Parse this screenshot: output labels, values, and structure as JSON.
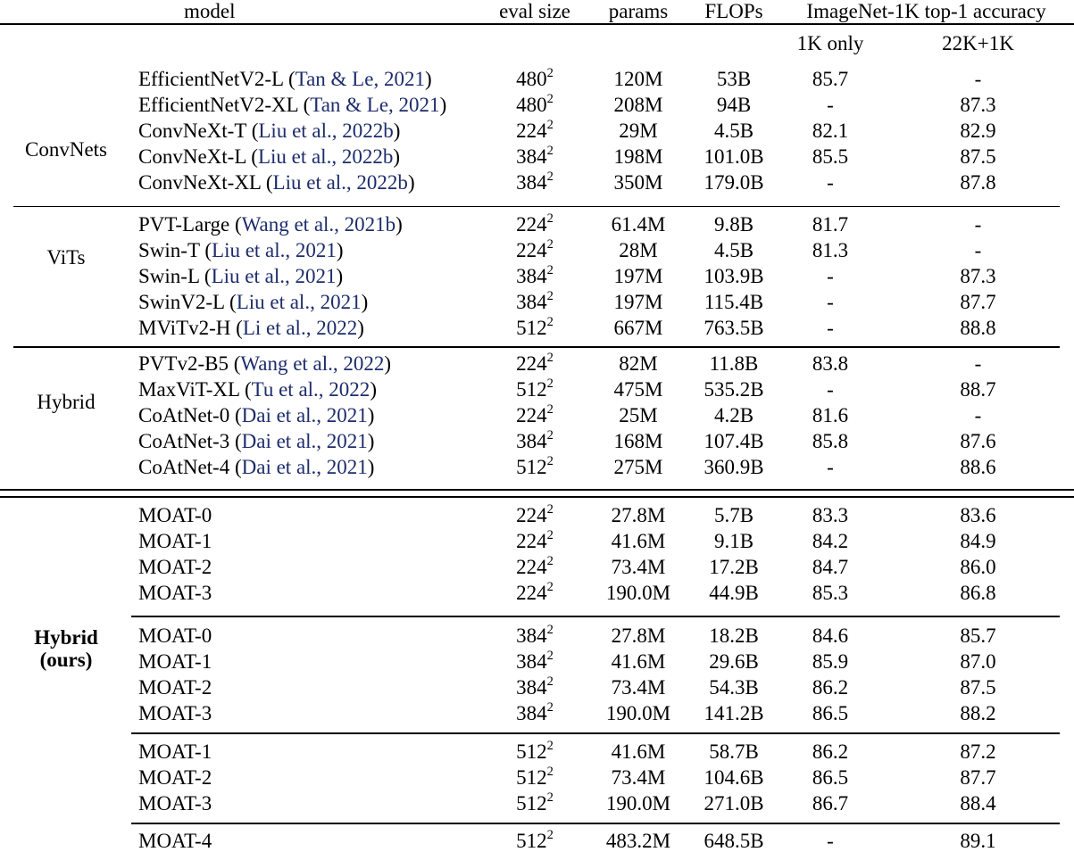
{
  "table": {
    "citation_color": "#1d2c6b",
    "headers": {
      "model": "model",
      "eval": "eval size",
      "params": "params",
      "flops": "FLOPs",
      "acc_group": "ImageNet-1K top-1 accuracy",
      "acc_1k": "1K only",
      "acc_22k": "22K+1K"
    },
    "groups": [
      {
        "label": "ConvNets",
        "sections": [
          {
            "rows": [
              {
                "model": "EfficientNetV2-L",
                "cite": "Tan & Le, 2021",
                "eval": "480^2",
                "params": "120M",
                "flops": "53B",
                "acc1k": "85.7",
                "acc22k": "-"
              },
              {
                "model": "EfficientNetV2-XL",
                "cite": "Tan & Le, 2021",
                "eval": "480^2",
                "params": "208M",
                "flops": "94B",
                "acc1k": "-",
                "acc22k": "87.3"
              },
              {
                "model": "ConvNeXt-T",
                "cite": "Liu et al., 2022b",
                "eval": "224^2",
                "params": "29M",
                "flops": "4.5B",
                "acc1k": "82.1",
                "acc22k": "82.9"
              },
              {
                "model": "ConvNeXt-L",
                "cite": "Liu et al., 2022b",
                "eval": "384^2",
                "params": "198M",
                "flops": "101.0B",
                "acc1k": "85.5",
                "acc22k": "87.5"
              },
              {
                "model": "ConvNeXt-XL",
                "cite": "Liu et al., 2022b",
                "eval": "384^2",
                "params": "350M",
                "flops": "179.0B",
                "acc1k": "-",
                "acc22k": "87.8"
              }
            ]
          }
        ]
      },
      {
        "label": "ViTs",
        "sections": [
          {
            "rows": [
              {
                "model": "PVT-Large",
                "cite": "Wang et al., 2021b",
                "eval": "224^2",
                "params": "61.4M",
                "flops": "9.8B",
                "acc1k": "81.7",
                "acc22k": "-"
              },
              {
                "model": "Swin-T",
                "cite": "Liu et al., 2021",
                "eval": "224^2",
                "params": "28M",
                "flops": "4.5B",
                "acc1k": "81.3",
                "acc22k": "-"
              },
              {
                "model": "Swin-L",
                "cite": "Liu et al., 2021",
                "eval": "384^2",
                "params": "197M",
                "flops": "103.9B",
                "acc1k": "-",
                "acc22k": "87.3"
              },
              {
                "model": "SwinV2-L",
                "cite": "Liu et al., 2021",
                "eval": "384^2",
                "params": "197M",
                "flops": "115.4B",
                "acc1k": "-",
                "acc22k": "87.7"
              },
              {
                "model": "MViTv2-H",
                "cite": "Li et al., 2022",
                "eval": "512^2",
                "params": "667M",
                "flops": "763.5B",
                "acc1k": "-",
                "acc22k": "88.8"
              }
            ]
          }
        ]
      },
      {
        "label": "Hybrid",
        "sections": [
          {
            "rows": [
              {
                "model": "PVTv2-B5",
                "cite": "Wang et al., 2022",
                "eval": "224^2",
                "params": "82M",
                "flops": "11.8B",
                "acc1k": "83.8",
                "acc22k": "-"
              },
              {
                "model": "MaxViT-XL",
                "cite": "Tu et al., 2022",
                "eval": "512^2",
                "params": "475M",
                "flops": "535.2B",
                "acc1k": "-",
                "acc22k": "88.7"
              },
              {
                "model": "CoAtNet-0",
                "cite": "Dai et al., 2021",
                "eval": "224^2",
                "params": "25M",
                "flops": "4.2B",
                "acc1k": "81.6",
                "acc22k": "-"
              },
              {
                "model": "CoAtNet-3",
                "cite": "Dai et al., 2021",
                "eval": "384^2",
                "params": "168M",
                "flops": "107.4B",
                "acc1k": "85.8",
                "acc22k": "87.6"
              },
              {
                "model": "CoAtNet-4",
                "cite": "Dai et al., 2021",
                "eval": "512^2",
                "params": "275M",
                "flops": "360.9B",
                "acc1k": "-",
                "acc22k": "88.6"
              }
            ]
          }
        ]
      },
      {
        "label_line1": "Hybrid",
        "label_line2": "(ours)",
        "sections": [
          {
            "rows": [
              {
                "model": "MOAT-0",
                "cite": null,
                "eval": "224^2",
                "params": "27.8M",
                "flops": "5.7B",
                "acc1k": "83.3",
                "acc22k": "83.6"
              },
              {
                "model": "MOAT-1",
                "cite": null,
                "eval": "224^2",
                "params": "41.6M",
                "flops": "9.1B",
                "acc1k": "84.2",
                "acc22k": "84.9"
              },
              {
                "model": "MOAT-2",
                "cite": null,
                "eval": "224^2",
                "params": "73.4M",
                "flops": "17.2B",
                "acc1k": "84.7",
                "acc22k": "86.0"
              },
              {
                "model": "MOAT-3",
                "cite": null,
                "eval": "224^2",
                "params": "190.0M",
                "flops": "44.9B",
                "acc1k": "85.3",
                "acc22k": "86.8"
              }
            ]
          },
          {
            "rows": [
              {
                "model": "MOAT-0",
                "cite": null,
                "eval": "384^2",
                "params": "27.8M",
                "flops": "18.2B",
                "acc1k": "84.6",
                "acc22k": "85.7"
              },
              {
                "model": "MOAT-1",
                "cite": null,
                "eval": "384^2",
                "params": "41.6M",
                "flops": "29.6B",
                "acc1k": "85.9",
                "acc22k": "87.0"
              },
              {
                "model": "MOAT-2",
                "cite": null,
                "eval": "384^2",
                "params": "73.4M",
                "flops": "54.3B",
                "acc1k": "86.2",
                "acc22k": "87.5"
              },
              {
                "model": "MOAT-3",
                "cite": null,
                "eval": "384^2",
                "params": "190.0M",
                "flops": "141.2B",
                "acc1k": "86.5",
                "acc22k": "88.2"
              }
            ]
          },
          {
            "rows": [
              {
                "model": "MOAT-1",
                "cite": null,
                "eval": "512^2",
                "params": "41.6M",
                "flops": "58.7B",
                "acc1k": "86.2",
                "acc22k": "87.2"
              },
              {
                "model": "MOAT-2",
                "cite": null,
                "eval": "512^2",
                "params": "73.4M",
                "flops": "104.6B",
                "acc1k": "86.5",
                "acc22k": "87.7"
              },
              {
                "model": "MOAT-3",
                "cite": null,
                "eval": "512^2",
                "params": "190.0M",
                "flops": "271.0B",
                "acc1k": "86.7",
                "acc22k": "88.4"
              }
            ]
          },
          {
            "rows": [
              {
                "model": "MOAT-4",
                "cite": null,
                "eval": "512^2",
                "params": "483.2M",
                "flops": "648.5B",
                "acc1k": "-",
                "acc22k": "89.1"
              }
            ]
          }
        ]
      }
    ]
  }
}
